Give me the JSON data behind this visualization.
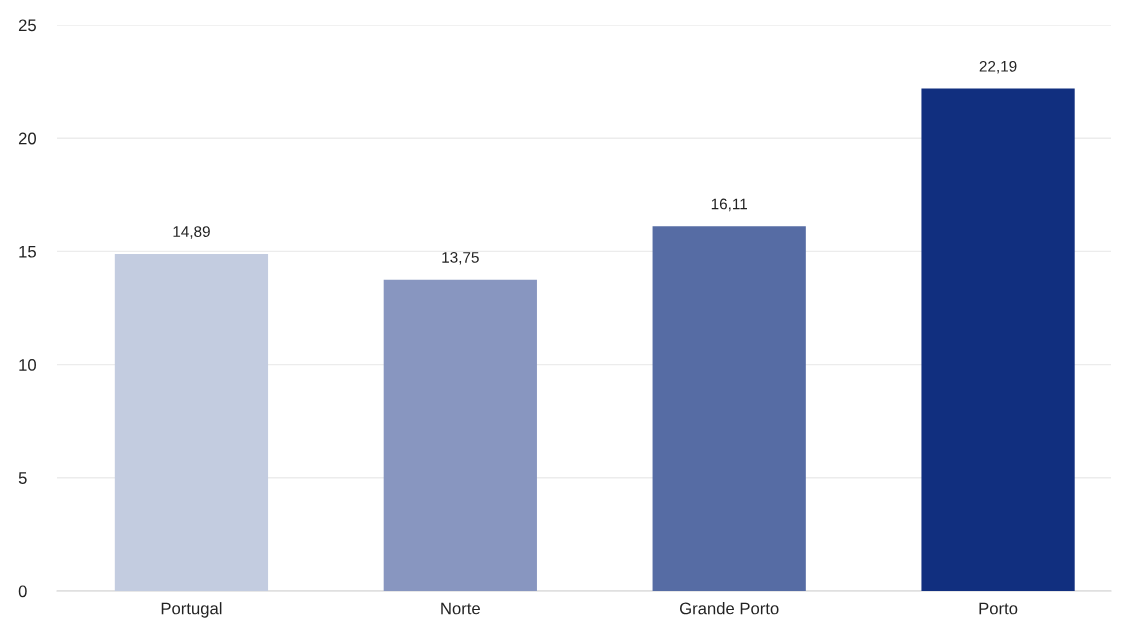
{
  "chart_data": {
    "type": "bar",
    "categories": [
      "Portugal",
      "Norte",
      "Grande Porto",
      "Porto"
    ],
    "values": [
      14.89,
      13.75,
      16.11,
      22.19
    ],
    "colors": [
      "#c3cce0",
      "#8896c0",
      "#566ca4",
      "#112f7f"
    ],
    "value_labels": [
      "14,89",
      "13,75",
      "16,11",
      "22,19"
    ],
    "ylim": [
      0,
      25
    ],
    "yticks": [
      0,
      5,
      10,
      15,
      20,
      25
    ],
    "grid": "y",
    "legend": false
  }
}
